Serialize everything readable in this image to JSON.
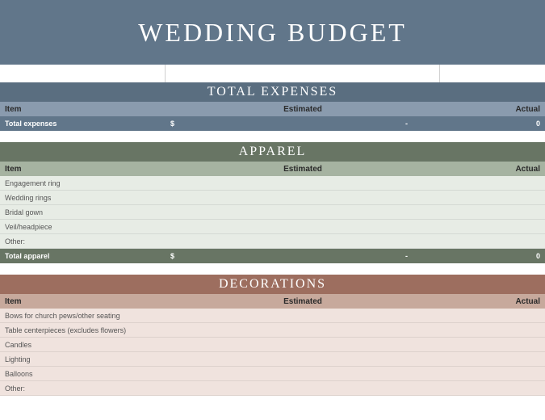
{
  "title": "WEDDING BUDGET",
  "title_bg": "#61768a",
  "columns": {
    "item": "Item",
    "estimated": "Estimated",
    "actual": "Actual"
  },
  "currency": "$",
  "dash": "-",
  "zero": "0",
  "sections": {
    "totalExpenses": {
      "header": "TOTAL EXPENSES",
      "header_bg": "#5a6e80",
      "colhead_bg": "#8a9bae",
      "colhead_text": "#2a2a2a",
      "total_bg": "#61768a",
      "total_label": "Total expenses"
    },
    "apparel": {
      "header": "APPAREL",
      "header_bg": "#687564",
      "colhead_bg": "#a6b3a1",
      "colhead_text": "#2a2a2a",
      "row_bg": "#e7ece5",
      "row_text": "#555555",
      "total_bg": "#687564",
      "total_label": "Total apparel",
      "items": [
        "Engagement ring",
        "Wedding rings",
        "Bridal gown",
        "Veil/headpiece",
        "Other:"
      ]
    },
    "decorations": {
      "header": "DECORATIONS",
      "header_bg": "#9d6e5f",
      "colhead_bg": "#c7a99c",
      "colhead_text": "#2a2a2a",
      "row_bg": "#f0e3de",
      "row_text": "#555555",
      "items": [
        "Bows for church pews/other seating",
        "Table centerpieces (excludes flowers)",
        "Candles",
        "Lighting",
        "Balloons",
        "Other:"
      ]
    }
  }
}
